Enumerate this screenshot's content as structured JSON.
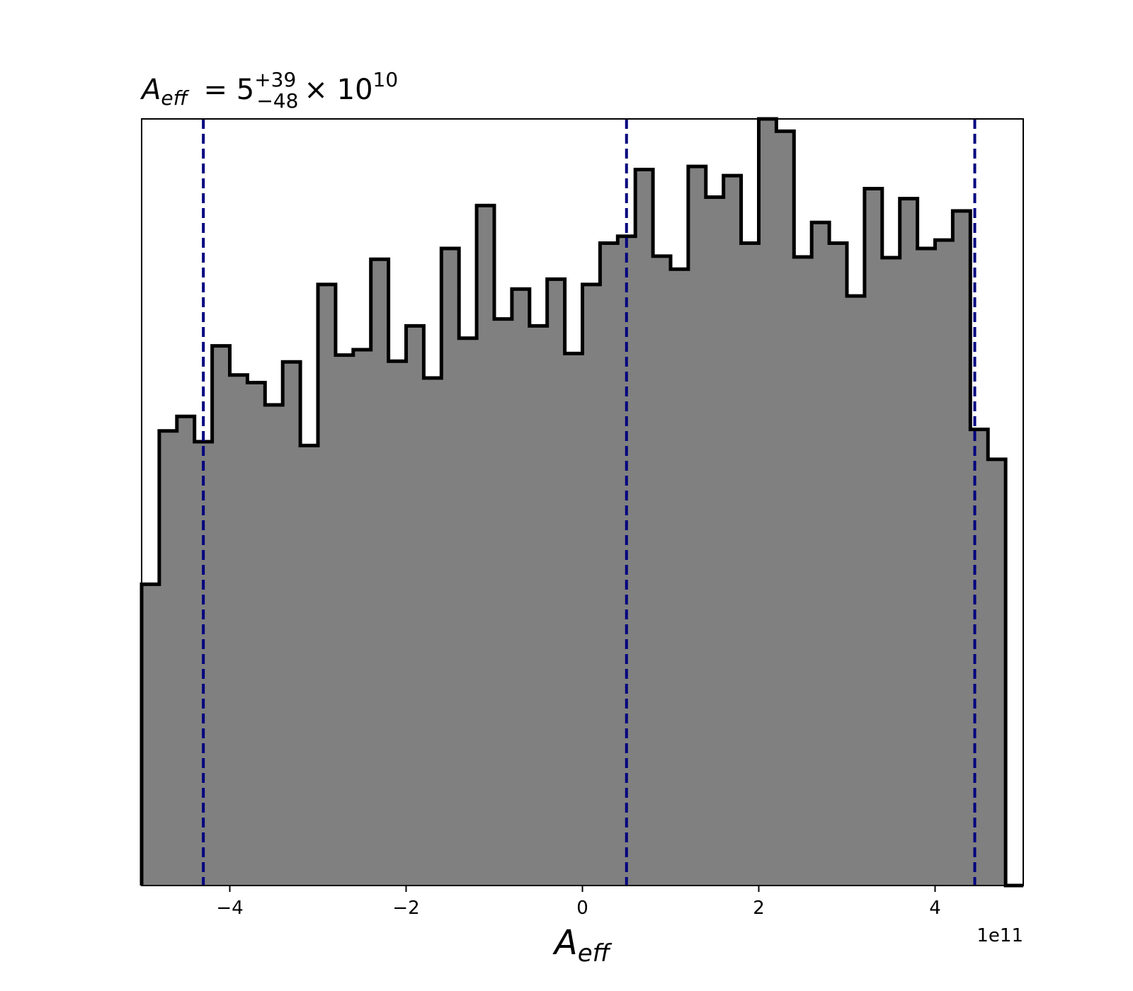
{
  "chart_data": {
    "type": "histogram",
    "title": {
      "symbol": "A",
      "symbol_sub": "eff",
      "equals": " = 5",
      "upper": "+39",
      "lower": "−48",
      "times": "× 10",
      "exp": "10"
    },
    "xlabel": {
      "symbol": "A",
      "sub": "eff"
    },
    "x_offset_label": "1e11",
    "x_scale": 100000000000.0,
    "xlim": [
      -5.0,
      5.0
    ],
    "ylim": [
      0,
      1.0
    ],
    "y_ticks_visible": false,
    "grid": false,
    "xticks": [
      {
        "value": -4,
        "label": "−4"
      },
      {
        "value": -2,
        "label": "−2"
      },
      {
        "value": 0,
        "label": "0"
      },
      {
        "value": 2,
        "label": "2"
      },
      {
        "value": 4,
        "label": "4"
      }
    ],
    "bin_width": 0.2,
    "bin_edges_start": -5.0,
    "bin_heights": [
      0.393,
      0.593,
      0.612,
      0.579,
      0.704,
      0.666,
      0.656,
      0.627,
      0.683,
      0.574,
      0.784,
      0.692,
      0.699,
      0.817,
      0.684,
      0.73,
      0.662,
      0.831,
      0.714,
      0.887,
      0.739,
      0.778,
      0.73,
      0.791,
      0.694,
      0.784,
      0.838,
      0.847,
      0.934,
      0.821,
      0.804,
      0.938,
      0.898,
      0.926,
      0.838,
      1.0,
      0.984,
      0.82,
      0.865,
      0.838,
      0.769,
      0.909,
      0.819,
      0.896,
      0.831,
      0.842,
      0.88,
      0.595,
      0.556,
      0.0
    ],
    "fill_color": "#808080",
    "edge_color": "#000000",
    "quantile_lines": {
      "color": "#00007f",
      "style": "dashed",
      "values": [
        -4.3,
        0.5,
        4.45
      ]
    }
  }
}
